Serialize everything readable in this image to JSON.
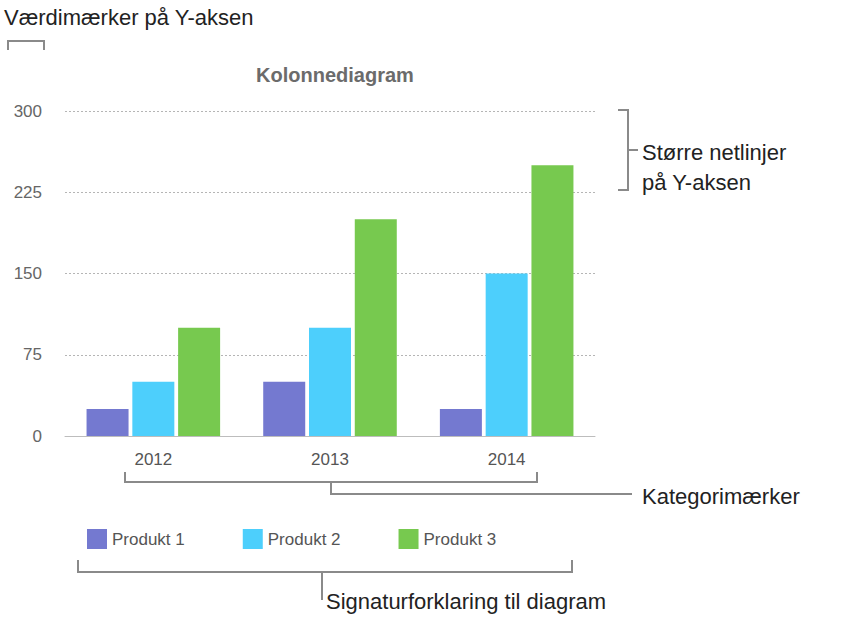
{
  "chart_data": {
    "type": "bar",
    "title": "Kolonnediagram",
    "categories": [
      "2012",
      "2013",
      "2014"
    ],
    "series": [
      {
        "name": "Produkt 1",
        "color": "#7479d0",
        "values": [
          25,
          50,
          25
        ]
      },
      {
        "name": "Produkt 2",
        "color": "#4dcffc",
        "values": [
          50,
          100,
          150
        ]
      },
      {
        "name": "Produkt 3",
        "color": "#77c94f",
        "values": [
          100,
          200,
          250
        ]
      }
    ],
    "ylim": [
      0,
      300
    ],
    "yticks": [
      0,
      75,
      150,
      225,
      300
    ],
    "grid": true,
    "legend": "bottom",
    "annotations": [
      {
        "lines": [
          "Værdimærker på Y-aksen"
        ]
      },
      {
        "lines": [
          "Større netlinjer",
          "på Y-aksen"
        ]
      },
      {
        "lines": [
          "Kategorimærker"
        ]
      },
      {
        "lines": [
          "Signaturforklaring til diagram"
        ]
      }
    ]
  }
}
